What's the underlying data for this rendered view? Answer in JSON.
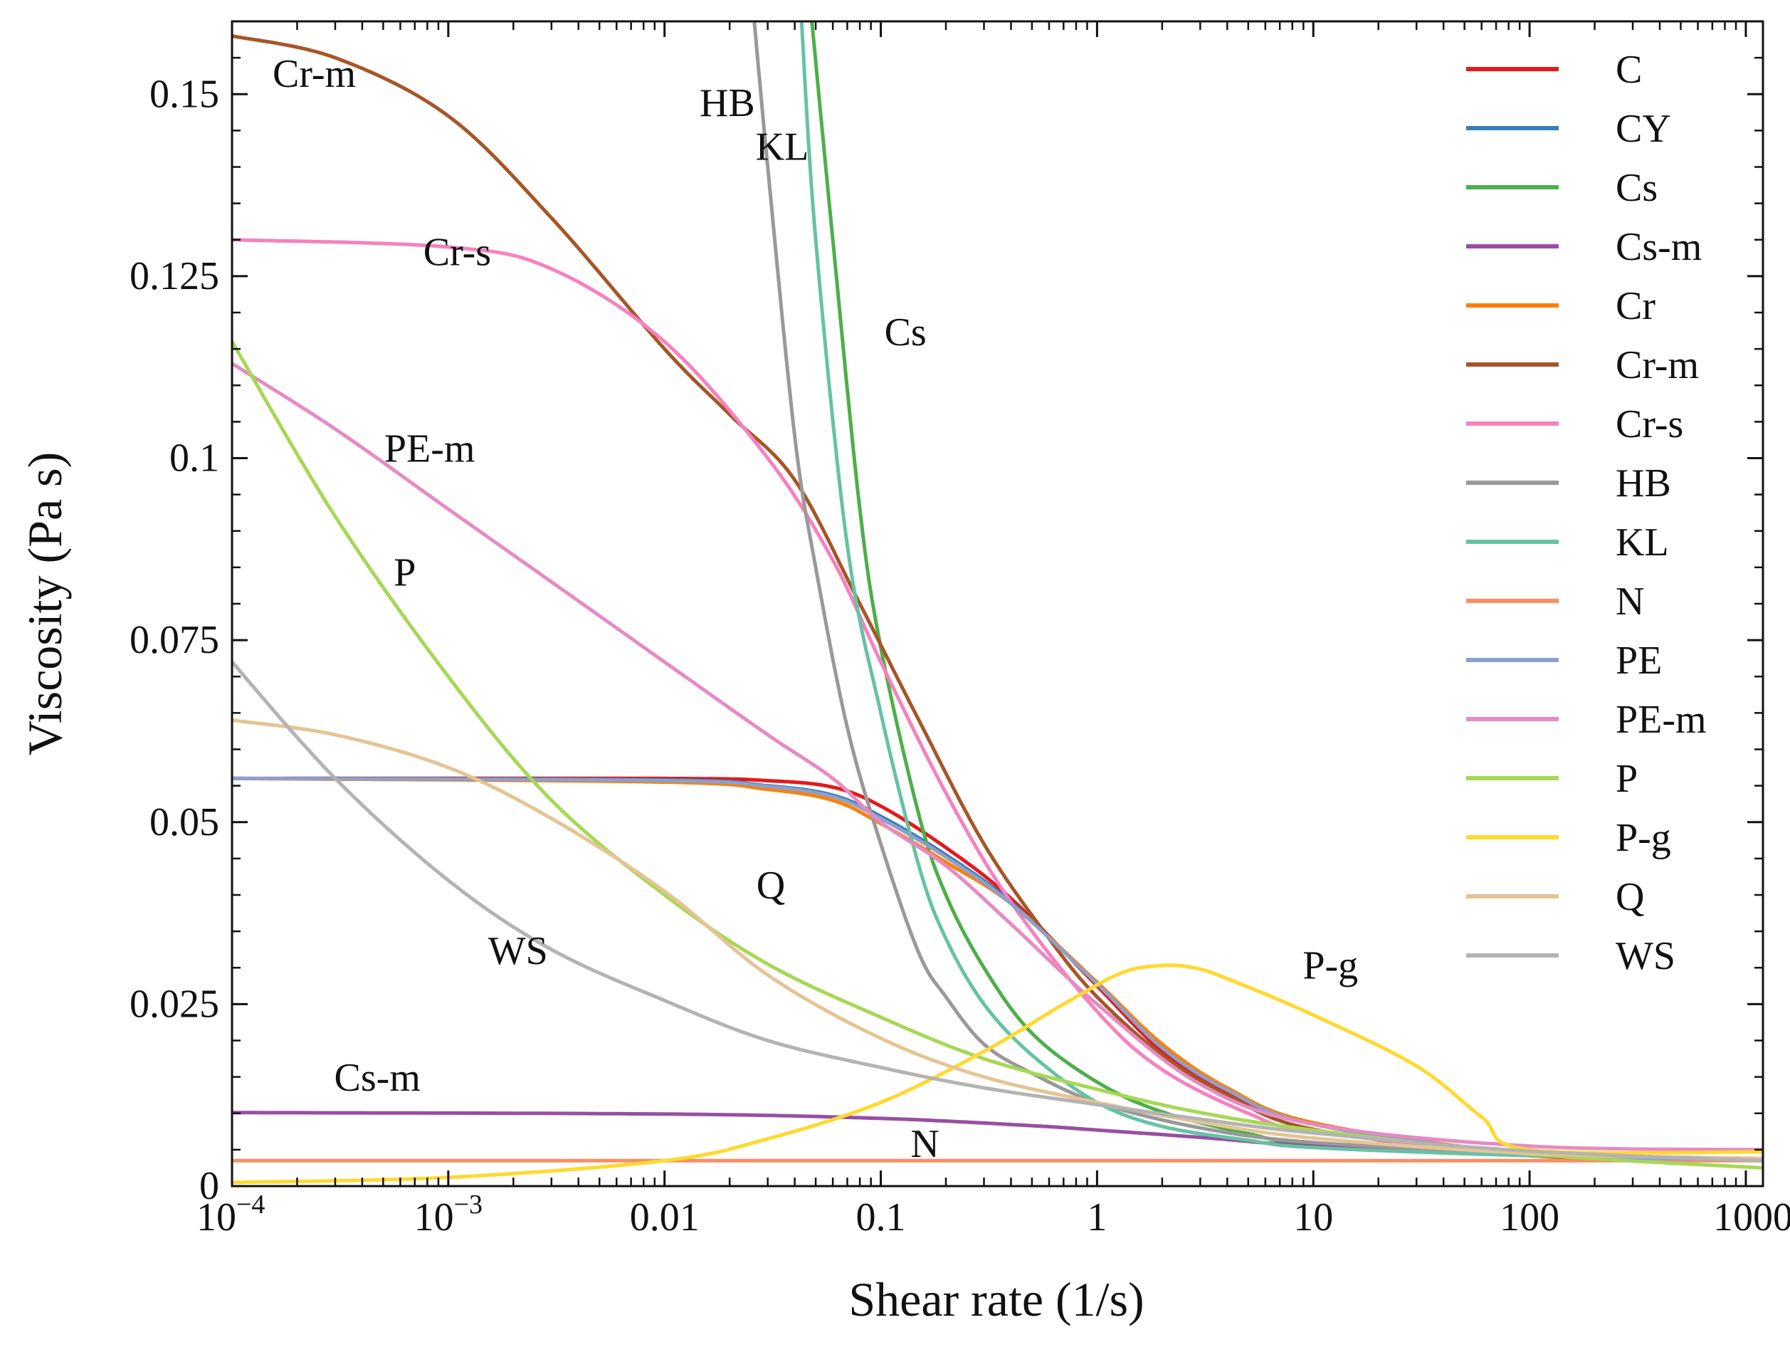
{
  "chart_data": {
    "type": "line",
    "xscale": "log",
    "xlabel": "Shear rate (1/s)",
    "ylabel": "Viscosity (Pa s)",
    "xlim": [
      0.0001,
      1200
    ],
    "ylim": [
      0,
      0.16
    ],
    "grid": false,
    "legend_position": "top-right",
    "x_ticks": [
      {
        "value": 0.0001,
        "base": "10",
        "exp": "−4"
      },
      {
        "value": 0.001,
        "base": "10",
        "exp": "−3"
      },
      {
        "value": 0.01,
        "label": "0.01"
      },
      {
        "value": 0.1,
        "label": "0.1"
      },
      {
        "value": 1,
        "label": "1"
      },
      {
        "value": 10,
        "label": "10"
      },
      {
        "value": 100,
        "label": "100"
      },
      {
        "value": 1000,
        "label": "1000"
      }
    ],
    "y_ticks": [
      {
        "value": 0,
        "label": "0"
      },
      {
        "value": 0.025,
        "label": "0.025"
      },
      {
        "value": 0.05,
        "label": "0.05"
      },
      {
        "value": 0.075,
        "label": "0.075"
      },
      {
        "value": 0.1,
        "label": "0.1"
      },
      {
        "value": 0.125,
        "label": "0.125"
      },
      {
        "value": 0.15,
        "label": "0.15"
      }
    ],
    "series": [
      {
        "name": "C",
        "color": "#e41a1c",
        "x": [
          0.0001,
          0.01,
          0.03,
          0.06,
          0.1,
          0.2,
          0.4,
          1,
          2,
          4,
          10,
          100,
          1200
        ],
        "y": [
          0.056,
          0.056,
          0.0557,
          0.0548,
          0.0522,
          0.0465,
          0.0395,
          0.0275,
          0.0185,
          0.013,
          0.0085,
          0.0045,
          0.0037
        ]
      },
      {
        "name": "CY",
        "color": "#377eb8",
        "x": [
          0.0001,
          0.01,
          0.03,
          0.06,
          0.1,
          0.2,
          0.4,
          1,
          2,
          4,
          10,
          100,
          1200
        ],
        "y": [
          0.056,
          0.0558,
          0.055,
          0.0537,
          0.0508,
          0.0455,
          0.039,
          0.0278,
          0.019,
          0.0132,
          0.0085,
          0.0045,
          0.0036
        ]
      },
      {
        "name": "Cs",
        "color": "#4daf4a",
        "x": [
          0.048,
          0.06,
          0.08,
          0.1,
          0.15,
          0.2,
          0.3,
          0.5,
          1,
          2,
          5,
          10,
          100,
          1200
        ],
        "y": [
          0.16,
          0.13,
          0.093,
          0.074,
          0.051,
          0.04,
          0.03,
          0.021,
          0.0143,
          0.0102,
          0.0072,
          0.0058,
          0.0042,
          0.0037
        ]
      },
      {
        "name": "Cs-m",
        "color": "#984ea3",
        "x": [
          0.0001,
          0.01,
          0.1,
          0.5,
          1,
          3,
          10,
          100,
          1200
        ],
        "y": [
          0.0101,
          0.0099,
          0.0093,
          0.0083,
          0.0077,
          0.0067,
          0.0055,
          0.0042,
          0.0036
        ]
      },
      {
        "name": "Cr",
        "color": "#ff7f00",
        "x": [
          0.0001,
          0.01,
          0.03,
          0.06,
          0.1,
          0.2,
          0.4,
          1,
          2,
          4,
          10,
          100,
          1200
        ],
        "y": [
          0.056,
          0.0555,
          0.0545,
          0.053,
          0.0498,
          0.0445,
          0.0388,
          0.028,
          0.0195,
          0.0135,
          0.0087,
          0.0045,
          0.0036
        ]
      },
      {
        "name": "Cr-m",
        "color": "#a65628",
        "x": [
          0.0001,
          0.0003,
          0.001,
          0.003,
          0.01,
          0.02,
          0.04,
          0.08,
          0.15,
          0.3,
          0.6,
          1,
          2,
          4,
          10,
          100,
          1200
        ],
        "y": [
          0.158,
          0.155,
          0.147,
          0.133,
          0.115,
          0.106,
          0.097,
          0.08,
          0.064,
          0.047,
          0.034,
          0.026,
          0.018,
          0.0125,
          0.0078,
          0.0042,
          0.0035
        ]
      },
      {
        "name": "Cr-s",
        "color": "#f781bf",
        "x": [
          0.0001,
          0.001,
          0.003,
          0.01,
          0.03,
          0.06,
          0.1,
          0.2,
          0.4,
          1,
          2,
          5,
          10,
          100,
          1200
        ],
        "y": [
          0.13,
          0.129,
          0.126,
          0.116,
          0.1,
          0.086,
          0.072,
          0.054,
          0.039,
          0.024,
          0.016,
          0.01,
          0.0075,
          0.0045,
          0.0035
        ]
      },
      {
        "name": "HB",
        "color": "#999999",
        "x": [
          0.026,
          0.03,
          0.04,
          0.05,
          0.07,
          0.1,
          0.15,
          0.2,
          0.3,
          0.5,
          1,
          3,
          10,
          100,
          1200
        ],
        "y": [
          0.16,
          0.14,
          0.103,
          0.085,
          0.063,
          0.047,
          0.032,
          0.026,
          0.0195,
          0.0155,
          0.0115,
          0.008,
          0.006,
          0.0045,
          0.0037
        ]
      },
      {
        "name": "KL",
        "color": "#66c2a5",
        "x": [
          0.043,
          0.05,
          0.07,
          0.1,
          0.15,
          0.2,
          0.3,
          0.5,
          1,
          2,
          5,
          10,
          100,
          1200
        ],
        "y": [
          0.16,
          0.13,
          0.088,
          0.065,
          0.044,
          0.034,
          0.025,
          0.018,
          0.0115,
          0.0082,
          0.0063,
          0.0053,
          0.0042,
          0.0037
        ]
      },
      {
        "name": "N",
        "color": "#fc8d62",
        "x": [
          0.0001,
          1200
        ],
        "y": [
          0.0035,
          0.0035
        ]
      },
      {
        "name": "PE",
        "color": "#8da0cb",
        "x": [
          0.0001,
          0.01,
          0.03,
          0.06,
          0.1,
          0.2,
          0.4,
          1,
          2,
          4,
          10,
          100,
          1200
        ],
        "y": [
          0.056,
          0.0557,
          0.0549,
          0.0535,
          0.0505,
          0.0452,
          0.0388,
          0.0278,
          0.019,
          0.0132,
          0.0085,
          0.0045,
          0.0036
        ]
      },
      {
        "name": "PE-m",
        "color": "#e78ac3",
        "x": [
          0.0001,
          0.0003,
          0.001,
          0.003,
          0.01,
          0.03,
          0.06,
          0.1,
          0.2,
          0.4,
          1,
          3,
          10,
          100,
          1200
        ],
        "y": [
          0.113,
          0.104,
          0.093,
          0.083,
          0.072,
          0.062,
          0.056,
          0.05,
          0.044,
          0.036,
          0.025,
          0.014,
          0.0085,
          0.0055,
          0.005
        ]
      },
      {
        "name": "P",
        "color": "#a6d854",
        "x": [
          0.0001,
          0.0003,
          0.001,
          0.003,
          0.01,
          0.03,
          0.1,
          0.3,
          1,
          3,
          10,
          100,
          1200
        ],
        "y": [
          0.116,
          0.092,
          0.07,
          0.053,
          0.04,
          0.0305,
          0.0232,
          0.0175,
          0.0133,
          0.0101,
          0.0077,
          0.0044,
          0.0025
        ]
      },
      {
        "name": "P-g",
        "color": "#ffd92f",
        "x": [
          0.0001,
          0.001,
          0.01,
          0.03,
          0.1,
          0.3,
          0.7,
          1.3,
          2,
          2.8,
          4,
          10,
          30,
          60,
          100,
          1200
        ],
        "y": [
          0.0005,
          0.0012,
          0.0035,
          0.0065,
          0.0115,
          0.0185,
          0.025,
          0.0293,
          0.0303,
          0.03,
          0.0285,
          0.0235,
          0.0165,
          0.0095,
          0.005,
          0.0047
        ]
      },
      {
        "name": "Q",
        "color": "#e5c494",
        "x": [
          0.0001,
          0.0003,
          0.001,
          0.003,
          0.01,
          0.03,
          0.1,
          0.3,
          1,
          3,
          10,
          100,
          1200
        ],
        "y": [
          0.064,
          0.062,
          0.0575,
          0.0505,
          0.0405,
          0.029,
          0.0203,
          0.015,
          0.0115,
          0.0088,
          0.0066,
          0.0045,
          0.0038
        ]
      },
      {
        "name": "WS",
        "color": "#b3b3b3",
        "x": [
          0.0001,
          0.0003,
          0.001,
          0.003,
          0.01,
          0.03,
          0.1,
          0.3,
          1,
          3,
          10,
          100,
          1200
        ],
        "y": [
          0.072,
          0.056,
          0.042,
          0.0325,
          0.0255,
          0.02,
          0.0163,
          0.0135,
          0.0112,
          0.0092,
          0.0073,
          0.0048,
          0.0035
        ]
      }
    ],
    "annotations": [
      {
        "text": "Cr-m",
        "x": 0.00024,
        "y": 0.151
      },
      {
        "text": "Cr-s",
        "x": 0.0011,
        "y": 0.1265
      },
      {
        "text": "PE-m",
        "x": 0.00082,
        "y": 0.0995
      },
      {
        "text": "P",
        "x": 0.00063,
        "y": 0.0825
      },
      {
        "text": "WS",
        "x": 0.0021,
        "y": 0.0305
      },
      {
        "text": "Q",
        "x": 0.031,
        "y": 0.0395
      },
      {
        "text": "Cs-m",
        "x": 0.00047,
        "y": 0.0131
      },
      {
        "text": "N",
        "x": 0.16,
        "y": 0.004
      },
      {
        "text": "HB",
        "x": 0.0195,
        "y": 0.147
      },
      {
        "text": "KL",
        "x": 0.035,
        "y": 0.141
      },
      {
        "text": "Cs",
        "x": 0.13,
        "y": 0.1155
      },
      {
        "text": "P-g",
        "x": 12,
        "y": 0.0285
      }
    ]
  }
}
